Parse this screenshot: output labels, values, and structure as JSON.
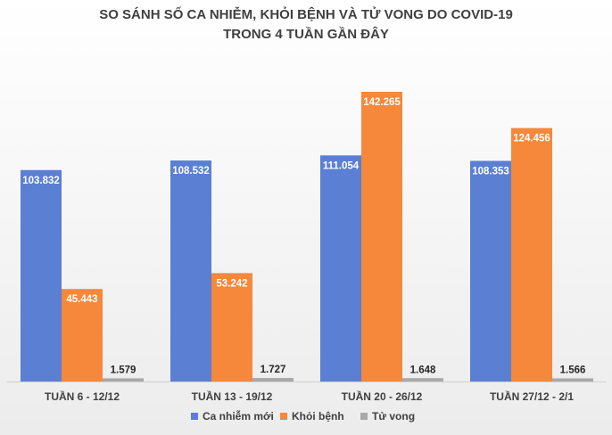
{
  "chart_data": {
    "type": "bar",
    "title": [
      "SO SÁNH SỐ CA NHIỄM, KHỎI BỆNH VÀ TỬ VONG DO COVID-19",
      "TRONG 4 TUẦN GẦN ĐÂY"
    ],
    "categories": [
      "TUẦN 6 - 12/12",
      "TUẦN 13 - 19/12",
      "TUẦN 20 - 26/12",
      "TUẦN 27/12 - 2/1"
    ],
    "series": [
      {
        "name": "Ca nhiễm mới",
        "color": "#5b7fd3",
        "values": [
          103832,
          108532,
          111054,
          108353
        ],
        "value_labels": [
          "103.832",
          "108.532",
          "111.054",
          "108.353"
        ]
      },
      {
        "name": "Khỏi bệnh",
        "color": "#f5883a",
        "values": [
          45443,
          53242,
          142265,
          124456
        ],
        "value_labels": [
          "45.443",
          "53.242",
          "142.265",
          "124.456"
        ]
      },
      {
        "name": "Tử vong",
        "color": "#a9a9a9",
        "values": [
          1579,
          1727,
          1648,
          1566
        ],
        "value_labels": [
          "1.579",
          "1.727",
          "1.648",
          "1.566"
        ]
      }
    ]
  }
}
